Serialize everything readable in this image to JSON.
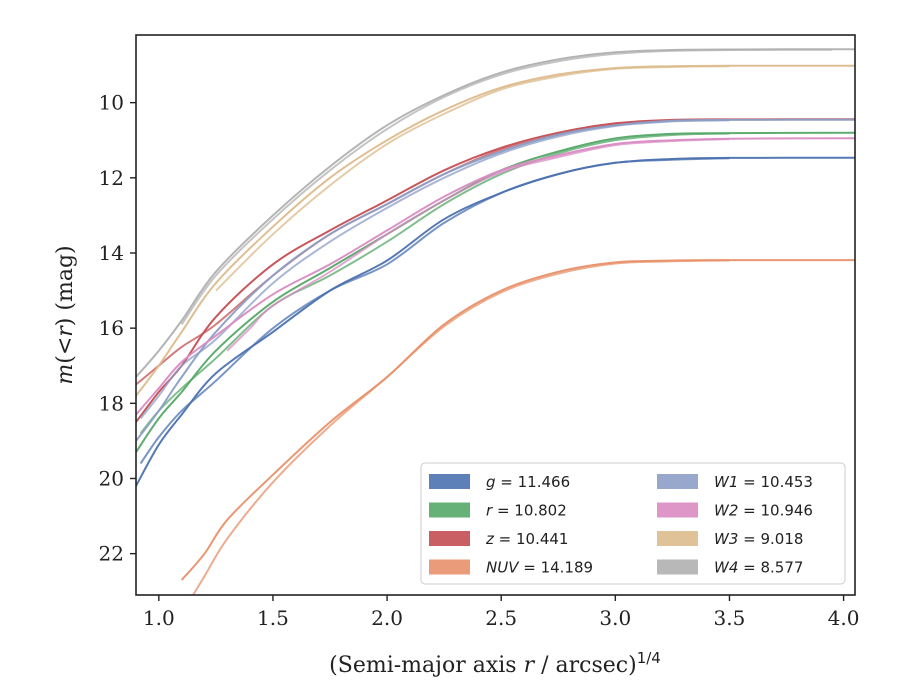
{
  "chart_data": {
    "type": "line",
    "xlabel": "(Semi-major axis r / arcsec)^(1/4)",
    "ylabel": "m(<r) (mag)",
    "xlim": [
      0.9,
      4.05
    ],
    "ylim": [
      23.1,
      8.2
    ],
    "y_inverted": true,
    "xticks": [
      "1.0",
      "1.5",
      "2.0",
      "2.5",
      "3.0",
      "3.5",
      "4.0"
    ],
    "xtick_values": [
      1.0,
      1.5,
      2.0,
      2.5,
      3.0,
      3.5,
      4.0
    ],
    "yticks": [
      "10",
      "12",
      "14",
      "16",
      "18",
      "20",
      "22"
    ],
    "ytick_values": [
      10,
      12,
      14,
      16,
      18,
      20,
      22
    ],
    "grid": false,
    "legend_location": "lower-right",
    "legend_columns": 2,
    "series": [
      {
        "name": "g = 11.466",
        "legend_prefix": "g",
        "legend_value": "11.466",
        "color": "#4c72b0",
        "lines": [
          [
            [
              0.9,
              20.2
            ],
            [
              1.0,
              19.1
            ],
            [
              1.1,
              18.3
            ],
            [
              1.25,
              17.2
            ],
            [
              1.5,
              16.1
            ],
            [
              1.75,
              15.0
            ],
            [
              2.0,
              14.2
            ],
            [
              2.25,
              13.1
            ],
            [
              2.5,
              12.4
            ],
            [
              2.75,
              11.9
            ],
            [
              3.0,
              11.6
            ],
            [
              3.25,
              11.5
            ],
            [
              3.5,
              11.47
            ],
            [
              4.05,
              11.466
            ]
          ],
          [
            [
              0.92,
              19.6
            ],
            [
              1.0,
              18.9
            ],
            [
              1.1,
              18.2
            ],
            [
              1.25,
              17.4
            ],
            [
              1.5,
              16.0
            ],
            [
              1.75,
              15.0
            ],
            [
              2.0,
              14.3
            ],
            [
              2.25,
              13.2
            ],
            [
              2.5,
              12.4
            ],
            [
              2.75,
              11.9
            ],
            [
              3.0,
              11.6
            ],
            [
              3.25,
              11.52
            ],
            [
              3.5,
              11.48
            ]
          ]
        ]
      },
      {
        "name": "r = 10.802",
        "legend_prefix": "r",
        "legend_value": "10.802",
        "color": "#55a868",
        "lines": [
          [
            [
              0.9,
              19.3
            ],
            [
              1.0,
              18.4
            ],
            [
              1.1,
              17.7
            ],
            [
              1.25,
              16.6
            ],
            [
              1.5,
              15.3
            ],
            [
              1.75,
              14.4
            ],
            [
              2.0,
              13.5
            ],
            [
              2.25,
              12.6
            ],
            [
              2.5,
              11.8
            ],
            [
              2.75,
              11.3
            ],
            [
              3.0,
              10.95
            ],
            [
              3.25,
              10.83
            ],
            [
              3.5,
              10.81
            ],
            [
              4.05,
              10.802
            ]
          ],
          [
            [
              0.92,
              18.8
            ],
            [
              1.0,
              18.2
            ],
            [
              1.1,
              17.6
            ],
            [
              1.25,
              16.8
            ],
            [
              1.5,
              15.4
            ],
            [
              1.75,
              14.6
            ],
            [
              2.0,
              13.7
            ],
            [
              2.25,
              12.7
            ],
            [
              2.5,
              11.9
            ],
            [
              2.75,
              11.35
            ],
            [
              3.0,
              11.0
            ],
            [
              3.25,
              10.86
            ],
            [
              3.5,
              10.82
            ]
          ]
        ]
      },
      {
        "name": "z = 10.441",
        "legend_prefix": "z",
        "legend_value": "10.441",
        "color": "#c44e52",
        "lines": [
          [
            [
              0.9,
              18.5
            ],
            [
              1.0,
              17.7
            ],
            [
              1.1,
              17.0
            ],
            [
              1.25,
              15.7
            ],
            [
              1.5,
              14.3
            ],
            [
              1.75,
              13.4
            ],
            [
              2.0,
              12.6
            ],
            [
              2.25,
              11.8
            ],
            [
              2.5,
              11.2
            ],
            [
              2.75,
              10.8
            ],
            [
              3.0,
              10.55
            ],
            [
              3.25,
              10.46
            ],
            [
              3.5,
              10.445
            ],
            [
              4.05,
              10.441
            ]
          ],
          [
            [
              0.9,
              17.5
            ],
            [
              1.0,
              17.0
            ],
            [
              1.1,
              16.5
            ],
            [
              1.25,
              15.9
            ],
            [
              1.5,
              14.6
            ],
            [
              1.75,
              13.5
            ],
            [
              2.0,
              12.7
            ],
            [
              2.25,
              11.9
            ],
            [
              2.5,
              11.25
            ],
            [
              2.75,
              10.85
            ],
            [
              3.0,
              10.58
            ],
            [
              3.25,
              10.48
            ],
            [
              3.5,
              10.45
            ]
          ]
        ]
      },
      {
        "name": "NUV = 14.189",
        "legend_prefix": "NUV",
        "legend_value": "14.189",
        "color": "#e8906a",
        "lines": [
          [
            [
              1.1,
              22.7
            ],
            [
              1.2,
              22.0
            ],
            [
              1.3,
              21.1
            ],
            [
              1.5,
              19.9
            ],
            [
              1.75,
              18.5
            ],
            [
              2.0,
              17.3
            ],
            [
              2.25,
              15.9
            ],
            [
              2.5,
              15.0
            ],
            [
              2.75,
              14.5
            ],
            [
              3.0,
              14.25
            ],
            [
              3.25,
              14.2
            ],
            [
              3.5,
              14.19
            ],
            [
              4.05,
              14.189
            ]
          ],
          [
            [
              1.15,
              23.1
            ],
            [
              1.2,
              22.6
            ],
            [
              1.3,
              21.6
            ],
            [
              1.5,
              20.1
            ],
            [
              1.75,
              18.6
            ],
            [
              2.0,
              17.3
            ],
            [
              2.25,
              15.95
            ],
            [
              2.5,
              15.05
            ],
            [
              2.75,
              14.55
            ],
            [
              3.0,
              14.28
            ],
            [
              3.25,
              14.22
            ],
            [
              3.5,
              14.2
            ]
          ]
        ]
      },
      {
        "name": "W1 = 10.453",
        "legend_prefix": "W1",
        "legend_value": "10.453",
        "color": "#8c9ec6",
        "lines": [
          [
            [
              0.9,
              19.0
            ],
            [
              1.0,
              18.2
            ],
            [
              1.1,
              17.3
            ],
            [
              1.25,
              16.1
            ],
            [
              1.5,
              14.6
            ],
            [
              1.75,
              13.5
            ],
            [
              2.0,
              12.7
            ],
            [
              2.25,
              11.9
            ],
            [
              2.5,
              11.3
            ],
            [
              2.75,
              10.85
            ],
            [
              3.0,
              10.6
            ],
            [
              3.25,
              10.48
            ],
            [
              3.5,
              10.46
            ],
            [
              4.05,
              10.453
            ]
          ],
          [
            [
              0.92,
              18.4
            ],
            [
              1.0,
              17.8
            ],
            [
              1.1,
              17.0
            ],
            [
              1.25,
              16.3
            ],
            [
              1.5,
              14.8
            ],
            [
              1.75,
              13.7
            ],
            [
              2.0,
              12.8
            ],
            [
              2.25,
              12.0
            ],
            [
              2.5,
              11.35
            ],
            [
              2.75,
              10.9
            ],
            [
              3.0,
              10.62
            ],
            [
              3.25,
              10.5
            ],
            [
              3.5,
              10.47
            ]
          ]
        ]
      },
      {
        "name": "W2 = 10.946",
        "legend_prefix": "W2",
        "legend_value": "10.946",
        "color": "#da8bc3",
        "lines": [
          [
            [
              0.9,
              18.3
            ],
            [
              1.0,
              17.6
            ],
            [
              1.1,
              16.9
            ],
            [
              1.25,
              16.2
            ],
            [
              1.5,
              15.1
            ],
            [
              1.75,
              14.3
            ],
            [
              2.0,
              13.4
            ],
            [
              2.25,
              12.5
            ],
            [
              2.5,
              11.8
            ],
            [
              2.75,
              11.4
            ],
            [
              3.0,
              11.1
            ],
            [
              3.25,
              11.0
            ],
            [
              3.5,
              10.96
            ],
            [
              4.05,
              10.946
            ]
          ],
          [
            [
              1.3,
              16.6
            ],
            [
              1.4,
              16.0
            ],
            [
              1.5,
              15.4
            ],
            [
              1.75,
              14.5
            ],
            [
              2.0,
              13.5
            ],
            [
              2.25,
              12.6
            ],
            [
              2.5,
              11.85
            ],
            [
              2.75,
              11.45
            ],
            [
              3.0,
              11.13
            ],
            [
              3.25,
              11.02
            ],
            [
              3.5,
              10.97
            ]
          ]
        ]
      },
      {
        "name": "W3 = 9.018",
        "legend_prefix": "W3",
        "legend_value": "9.018",
        "color": "#dcbb8c",
        "lines": [
          [
            [
              0.9,
              17.8
            ],
            [
              1.0,
              17.0
            ],
            [
              1.1,
              16.1
            ],
            [
              1.25,
              14.8
            ],
            [
              1.5,
              13.3
            ],
            [
              1.75,
              12.0
            ],
            [
              2.0,
              11.0
            ],
            [
              2.25,
              10.2
            ],
            [
              2.5,
              9.6
            ],
            [
              2.75,
              9.25
            ],
            [
              3.0,
              9.08
            ],
            [
              3.25,
              9.03
            ],
            [
              3.5,
              9.02
            ],
            [
              4.05,
              9.018
            ]
          ],
          [
            [
              1.25,
              15.0
            ],
            [
              1.5,
              13.5
            ],
            [
              1.75,
              12.2
            ],
            [
              2.0,
              11.1
            ],
            [
              2.25,
              10.3
            ],
            [
              2.5,
              9.65
            ],
            [
              2.75,
              9.3
            ],
            [
              3.0,
              9.1
            ],
            [
              3.25,
              9.05
            ],
            [
              3.5,
              9.03
            ]
          ]
        ]
      },
      {
        "name": "W4 = 8.577",
        "legend_prefix": "W4",
        "legend_value": "8.577",
        "color": "#b0b0b0",
        "lines": [
          [
            [
              0.9,
              17.3
            ],
            [
              1.0,
              16.6
            ],
            [
              1.1,
              15.8
            ],
            [
              1.25,
              14.5
            ],
            [
              1.5,
              13.0
            ],
            [
              1.75,
              11.7
            ],
            [
              2.0,
              10.6
            ],
            [
              2.25,
              9.8
            ],
            [
              2.5,
              9.2
            ],
            [
              2.75,
              8.85
            ],
            [
              3.0,
              8.66
            ],
            [
              3.25,
              8.6
            ],
            [
              3.5,
              8.585
            ],
            [
              4.05,
              8.577
            ]
          ],
          [
            [
              1.1,
              15.9
            ],
            [
              1.25,
              14.6
            ],
            [
              1.5,
              13.1
            ],
            [
              1.75,
              11.8
            ],
            [
              2.0,
              10.7
            ],
            [
              2.25,
              9.85
            ],
            [
              2.5,
              9.25
            ],
            [
              2.75,
              8.9
            ],
            [
              3.0,
              8.7
            ],
            [
              3.25,
              8.62
            ],
            [
              3.5,
              8.6
            ],
            [
              3.95,
              8.59
            ]
          ]
        ]
      }
    ]
  },
  "labels": {
    "xlabel_main": "(Semi-major axis ",
    "xlabel_var": "r",
    "xlabel_unit": " / arcsec)",
    "xlabel_exp": "1/4",
    "ylabel_m": "m",
    "ylabel_open": "(<",
    "ylabel_var": "r",
    "ylabel_close": ") (mag)"
  }
}
